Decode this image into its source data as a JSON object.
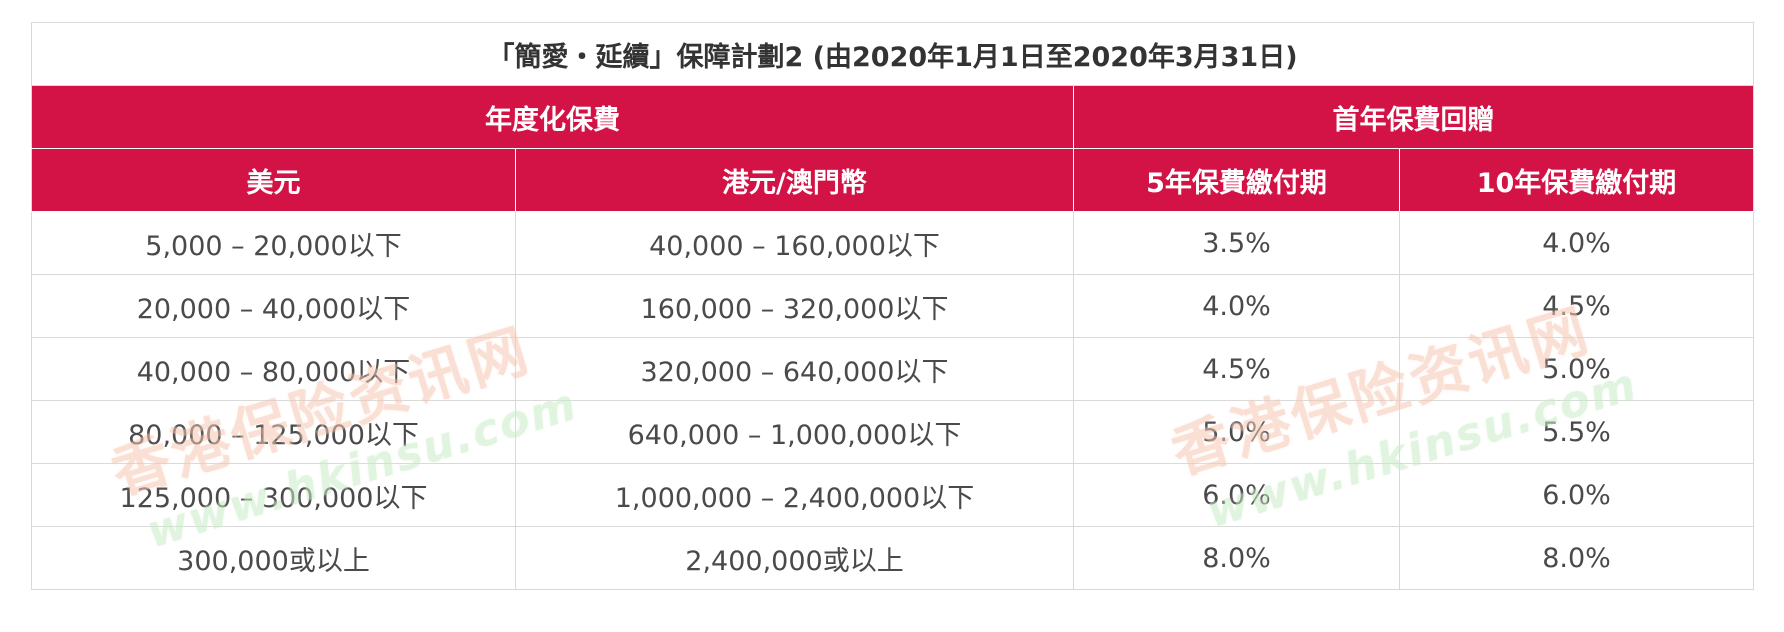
{
  "title": "「簡愛・延續」保障計劃2 (由2020年1月1日至2020年3月31日)",
  "group_headers": {
    "annualized_premium": "年度化保費",
    "first_year_rebate": "首年保費回贈"
  },
  "column_headers": {
    "usd": "美元",
    "hkd_mop": "港元/澳門幣",
    "five_year": "5年保費繳付期",
    "ten_year": "10年保費繳付期"
  },
  "rows": [
    {
      "usd": "5,000 – 20,000以下",
      "hkd": "40,000 – 160,000以下",
      "five": "3.5%",
      "ten": "4.0%"
    },
    {
      "usd": "20,000 – 40,000以下",
      "hkd": "160,000 – 320,000以下",
      "five": "4.0%",
      "ten": "4.5%"
    },
    {
      "usd": "40,000 – 80,000以下",
      "hkd": "320,000 – 640,000以下",
      "five": "4.5%",
      "ten": "5.0%"
    },
    {
      "usd": "80,000 – 125,000以下",
      "hkd": "640,000 – 1,000,000以下",
      "five": "5.0%",
      "ten": "5.5%"
    },
    {
      "usd": "125,000 – 300,000以下",
      "hkd": "1,000,000 – 2,400,000以下",
      "five": "6.0%",
      "ten": "6.0%"
    },
    {
      "usd": "300,000或以上",
      "hkd": "2,400,000或以上",
      "five": "8.0%",
      "ten": "8.0%"
    }
  ],
  "watermark": {
    "cn": "香港保险资讯网",
    "url": "www.hkinsu.com"
  },
  "colors": {
    "header_red": "#d31245",
    "text": "#4a4a4a"
  }
}
